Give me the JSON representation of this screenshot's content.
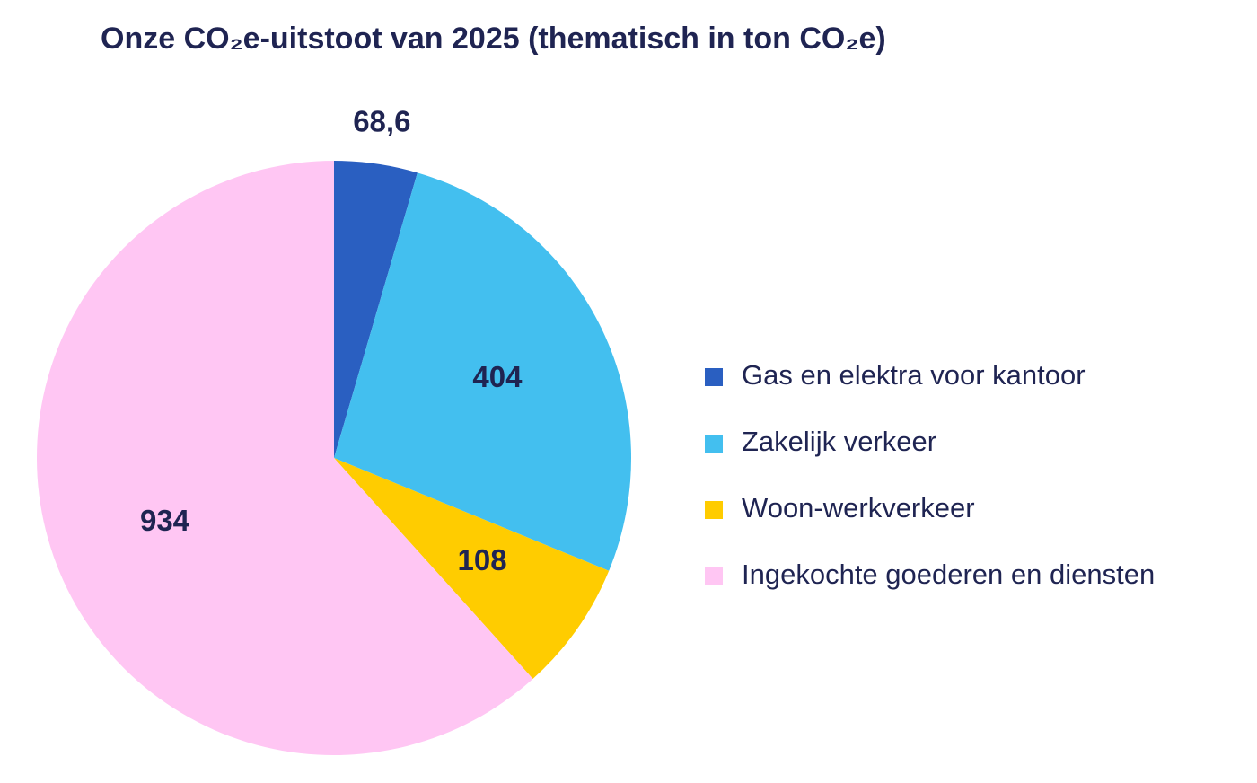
{
  "chart_data": {
    "type": "pie",
    "title": "Onze CO₂e-uitstoot van 2025 (thematisch in ton CO₂e)",
    "categories": [
      "Gas en elektra voor kantoor",
      "Zakelijk verkeer",
      "Woon-werkverkeer",
      "Ingekochte goederen en diensten"
    ],
    "values": [
      68.6,
      404,
      108,
      934
    ],
    "value_labels": [
      "68,6",
      "404",
      "108",
      "934"
    ],
    "colors": [
      "#2a5fc1",
      "#43bfef",
      "#ffcc00",
      "#ffc6f3"
    ],
    "legend": "right"
  }
}
